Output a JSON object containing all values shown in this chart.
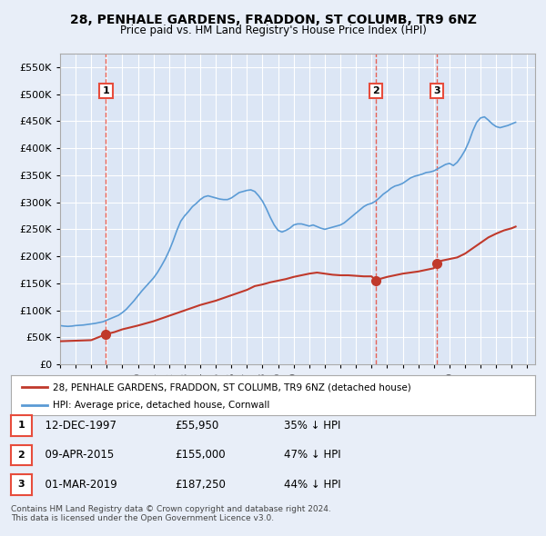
{
  "title": "28, PENHALE GARDENS, FRADDON, ST COLUMB, TR9 6NZ",
  "subtitle": "Price paid vs. HM Land Registry's House Price Index (HPI)",
  "background_color": "#e8eef8",
  "plot_bg_color": "#dce6f5",
  "ylim": [
    0,
    575000
  ],
  "yticks": [
    0,
    50000,
    100000,
    150000,
    200000,
    250000,
    300000,
    350000,
    400000,
    450000,
    500000,
    550000
  ],
  "ytick_labels": [
    "£0",
    "£50K",
    "£100K",
    "£150K",
    "£200K",
    "£250K",
    "£300K",
    "£350K",
    "£400K",
    "£450K",
    "£500K",
    "£550K"
  ],
  "xlim_start": 1995.0,
  "xlim_end": 2025.5,
  "hpi_color": "#5b9bd5",
  "price_color": "#c0392b",
  "sale_marker_color": "#c0392b",
  "vline_color": "#e74c3c",
  "sale_events": [
    {
      "year": 1997.95,
      "price": 55950,
      "label": "1"
    },
    {
      "year": 2015.27,
      "price": 155000,
      "label": "2"
    },
    {
      "year": 2019.17,
      "price": 187250,
      "label": "3"
    }
  ],
  "legend_entries": [
    "28, PENHALE GARDENS, FRADDON, ST COLUMB, TR9 6NZ (detached house)",
    "HPI: Average price, detached house, Cornwall"
  ],
  "table_rows": [
    {
      "num": "1",
      "date": "12-DEC-1997",
      "price": "£55,950",
      "note": "35% ↓ HPI"
    },
    {
      "num": "2",
      "date": "09-APR-2015",
      "price": "£155,000",
      "note": "47% ↓ HPI"
    },
    {
      "num": "3",
      "date": "01-MAR-2019",
      "price": "£187,250",
      "note": "44% ↓ HPI"
    }
  ],
  "footnote": "Contains HM Land Registry data © Crown copyright and database right 2024.\nThis data is licensed under the Open Government Licence v3.0.",
  "hpi_data_x": [
    1995.0,
    1995.25,
    1995.5,
    1995.75,
    1996.0,
    1996.25,
    1996.5,
    1996.75,
    1997.0,
    1997.25,
    1997.5,
    1997.75,
    1998.0,
    1998.25,
    1998.5,
    1998.75,
    1999.0,
    1999.25,
    1999.5,
    1999.75,
    2000.0,
    2000.25,
    2000.5,
    2000.75,
    2001.0,
    2001.25,
    2001.5,
    2001.75,
    2002.0,
    2002.25,
    2002.5,
    2002.75,
    2003.0,
    2003.25,
    2003.5,
    2003.75,
    2004.0,
    2004.25,
    2004.5,
    2004.75,
    2005.0,
    2005.25,
    2005.5,
    2005.75,
    2006.0,
    2006.25,
    2006.5,
    2006.75,
    2007.0,
    2007.25,
    2007.5,
    2007.75,
    2008.0,
    2008.25,
    2008.5,
    2008.75,
    2009.0,
    2009.25,
    2009.5,
    2009.75,
    2010.0,
    2010.25,
    2010.5,
    2010.75,
    2011.0,
    2011.25,
    2011.5,
    2011.75,
    2012.0,
    2012.25,
    2012.5,
    2012.75,
    2013.0,
    2013.25,
    2013.5,
    2013.75,
    2014.0,
    2014.25,
    2014.5,
    2014.75,
    2015.0,
    2015.25,
    2015.5,
    2015.75,
    2016.0,
    2016.25,
    2016.5,
    2016.75,
    2017.0,
    2017.25,
    2017.5,
    2017.75,
    2018.0,
    2018.25,
    2018.5,
    2018.75,
    2019.0,
    2019.25,
    2019.5,
    2019.75,
    2020.0,
    2020.25,
    2020.5,
    2020.75,
    2021.0,
    2021.25,
    2021.5,
    2021.75,
    2022.0,
    2022.25,
    2022.5,
    2022.75,
    2023.0,
    2023.25,
    2023.5,
    2023.75,
    2024.0,
    2024.25
  ],
  "hpi_data_y": [
    72000,
    71000,
    70500,
    71000,
    72000,
    72500,
    73000,
    74000,
    75000,
    76000,
    77500,
    79000,
    82000,
    85000,
    88000,
    91000,
    96000,
    102000,
    110000,
    118000,
    127000,
    136000,
    144000,
    152000,
    160000,
    170000,
    182000,
    195000,
    210000,
    228000,
    248000,
    265000,
    275000,
    283000,
    292000,
    298000,
    305000,
    310000,
    312000,
    310000,
    308000,
    306000,
    305000,
    305000,
    308000,
    313000,
    318000,
    320000,
    322000,
    323000,
    320000,
    312000,
    302000,
    288000,
    272000,
    258000,
    248000,
    245000,
    248000,
    252000,
    258000,
    260000,
    260000,
    258000,
    256000,
    258000,
    255000,
    252000,
    250000,
    252000,
    254000,
    256000,
    258000,
    262000,
    268000,
    274000,
    280000,
    286000,
    292000,
    296000,
    298000,
    302000,
    308000,
    315000,
    320000,
    326000,
    330000,
    332000,
    335000,
    340000,
    345000,
    348000,
    350000,
    352000,
    355000,
    356000,
    358000,
    362000,
    366000,
    370000,
    372000,
    368000,
    374000,
    384000,
    396000,
    412000,
    432000,
    448000,
    456000,
    458000,
    452000,
    445000,
    440000,
    438000,
    440000,
    442000,
    445000,
    448000
  ],
  "price_line_x": [
    1995.0,
    1996.0,
    1997.0,
    1997.95,
    1998.5,
    1999.0,
    2000.0,
    2001.0,
    2002.0,
    2003.0,
    2004.0,
    2005.0,
    2006.0,
    2007.0,
    2007.5,
    2008.0,
    2008.5,
    2009.0,
    2009.5,
    2010.0,
    2010.5,
    2011.0,
    2011.5,
    2012.0,
    2012.5,
    2013.0,
    2013.5,
    2014.0,
    2014.5,
    2015.0,
    2015.27,
    2015.5,
    2016.0,
    2016.5,
    2017.0,
    2017.5,
    2018.0,
    2018.5,
    2019.0,
    2019.17,
    2019.5,
    2020.0,
    2020.5,
    2021.0,
    2021.5,
    2022.0,
    2022.5,
    2023.0,
    2023.5,
    2024.0,
    2024.25
  ],
  "price_line_y": [
    43000,
    44000,
    45000,
    55950,
    60000,
    65000,
    72000,
    80000,
    90000,
    100000,
    110000,
    118000,
    128000,
    138000,
    145000,
    148000,
    152000,
    155000,
    158000,
    162000,
    165000,
    168000,
    170000,
    168000,
    166000,
    165000,
    165000,
    164000,
    163000,
    163000,
    155000,
    158000,
    162000,
    165000,
    168000,
    170000,
    172000,
    175000,
    178000,
    187250,
    192000,
    195000,
    198000,
    205000,
    215000,
    225000,
    235000,
    242000,
    248000,
    252000,
    255000
  ]
}
